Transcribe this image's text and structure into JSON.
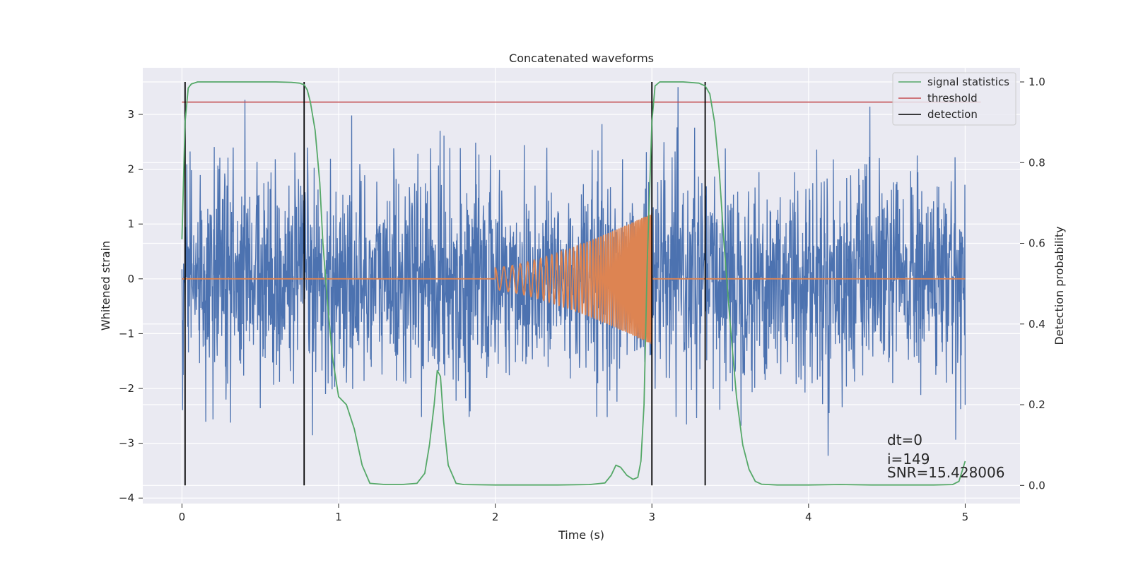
{
  "chart_data": {
    "type": "line",
    "title": "Concatenated waveforms",
    "xlabel": "Time (s)",
    "ylabel_left": "Whitened strain",
    "ylabel_right": "Detection probability",
    "xlim": [
      -0.25,
      5.35
    ],
    "ylim_left": [
      -4.1,
      3.85
    ],
    "ylim_right": [
      -0.045,
      1.035
    ],
    "xticks": [
      0,
      1,
      2,
      3,
      4,
      5
    ],
    "yticks_left": [
      -4,
      -3,
      -2,
      -1,
      0,
      1,
      2,
      3
    ],
    "yticks_right": [
      0.0,
      0.2,
      0.4,
      0.6,
      0.8,
      1.0
    ],
    "xtick_labels": [
      "0",
      "1",
      "2",
      "3",
      "4",
      "5"
    ],
    "ytick_labels_left": [
      "−4",
      "−3",
      "−2",
      "−1",
      "0",
      "1",
      "2",
      "3"
    ],
    "ytick_labels_right": [
      "0.0",
      "0.2",
      "0.4",
      "0.6",
      "0.8",
      "1.0"
    ],
    "grid": true,
    "legend_position": "top-right",
    "legend": [
      {
        "name": "signal statistics",
        "color": "#55a868"
      },
      {
        "name": "threshold",
        "color": "#c44e52"
      },
      {
        "name": "detection",
        "color": "#000000"
      }
    ],
    "colors": {
      "strain": "#4c72b0",
      "template": "#dd8452",
      "signal_statistics": "#55a868",
      "threshold": "#c44e52",
      "detection": "#000000",
      "axes_background": "#eaeaf2",
      "grid": "#ffffff"
    },
    "strain": {
      "x_range": [
        0,
        5
      ],
      "y_range_approx": [
        -3.4,
        3.5
      ]
    },
    "template": {
      "x_range": [
        0,
        5
      ],
      "chirp_start": 2.0,
      "chirp_end": 3.0,
      "peak_amplitude": 1.2
    },
    "threshold": 0.95,
    "threshold_x_range": [
      0,
      5.1
    ],
    "detection_lines": [
      0.02,
      0.78,
      3.0,
      3.34
    ],
    "signal_statistics": {
      "x": [
        0,
        0.02,
        0.04,
        0.06,
        0.1,
        0.2,
        0.4,
        0.6,
        0.7,
        0.75,
        0.78,
        0.8,
        0.82,
        0.85,
        0.88,
        0.9,
        0.93,
        0.96,
        1.0,
        1.05,
        1.1,
        1.15,
        1.2,
        1.3,
        1.4,
        1.5,
        1.55,
        1.58,
        1.61,
        1.63,
        1.65,
        1.67,
        1.7,
        1.75,
        1.8,
        2.0,
        2.2,
        2.4,
        2.6,
        2.7,
        2.74,
        2.77,
        2.8,
        2.84,
        2.88,
        2.91,
        2.93,
        2.95,
        2.97,
        3.0,
        3.02,
        3.05,
        3.1,
        3.2,
        3.3,
        3.34,
        3.37,
        3.4,
        3.43,
        3.46,
        3.5,
        3.54,
        3.58,
        3.62,
        3.66,
        3.7,
        3.8,
        4.0,
        4.2,
        4.4,
        4.6,
        4.8,
        4.92,
        4.96,
        4.98,
        5.0
      ],
      "y": [
        0.61,
        0.9,
        0.985,
        0.995,
        1.0,
        1.0,
        1.0,
        1.0,
        0.999,
        0.997,
        0.993,
        0.98,
        0.95,
        0.88,
        0.75,
        0.6,
        0.45,
        0.32,
        0.22,
        0.2,
        0.14,
        0.05,
        0.005,
        0.002,
        0.002,
        0.005,
        0.03,
        0.1,
        0.2,
        0.285,
        0.27,
        0.16,
        0.05,
        0.005,
        0.002,
        0.001,
        0.001,
        0.001,
        0.002,
        0.006,
        0.025,
        0.05,
        0.045,
        0.025,
        0.015,
        0.02,
        0.06,
        0.2,
        0.55,
        0.9,
        0.99,
        1.0,
        1.0,
        1.0,
        0.997,
        0.99,
        0.97,
        0.9,
        0.78,
        0.6,
        0.4,
        0.22,
        0.1,
        0.04,
        0.01,
        0.003,
        0.001,
        0.001,
        0.002,
        0.001,
        0.001,
        0.001,
        0.002,
        0.01,
        0.035,
        0.06
      ]
    },
    "annotations": [
      "dt=0",
      "i=149",
      "SNR=15.428006"
    ]
  }
}
